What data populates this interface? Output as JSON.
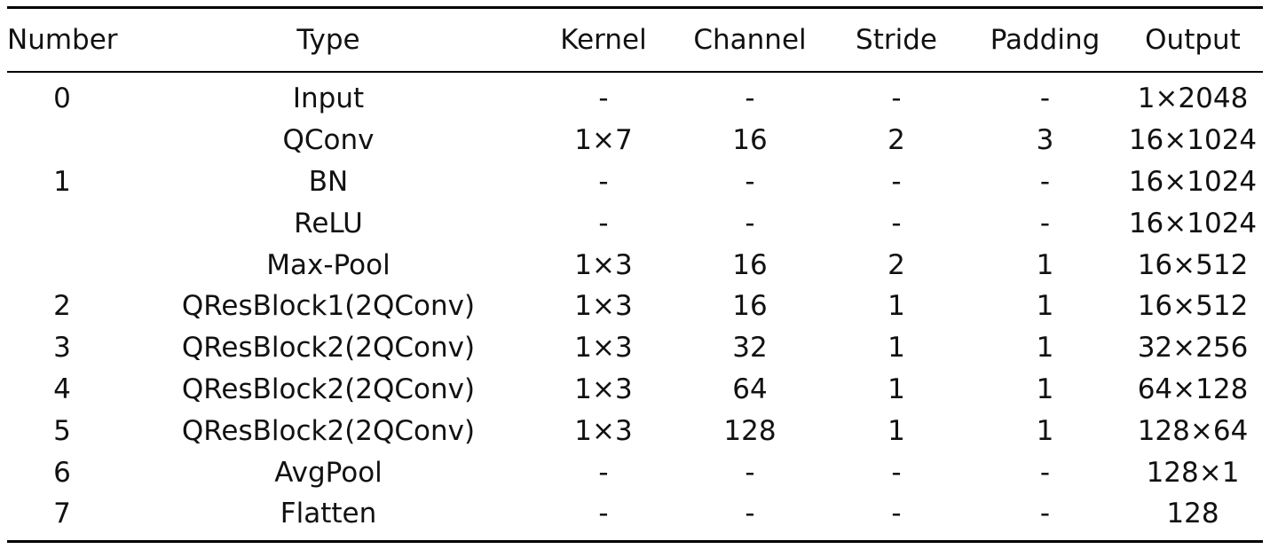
{
  "table": {
    "headers": [
      "Number",
      "Type",
      "Kernel",
      "Channel",
      "Stride",
      "Padding",
      "Output"
    ],
    "rows": [
      {
        "number": "0",
        "type": "Input",
        "kernel": "-",
        "channel": "-",
        "stride": "-",
        "padding": "-",
        "output": "1×2048"
      },
      {
        "number": "",
        "type": "QConv",
        "kernel": "1×7",
        "channel": "16",
        "stride": "2",
        "padding": "3",
        "output": "16×1024"
      },
      {
        "number": "1",
        "type": "BN",
        "kernel": "-",
        "channel": "-",
        "stride": "-",
        "padding": "-",
        "output": "16×1024"
      },
      {
        "number": "",
        "type": "ReLU",
        "kernel": "-",
        "channel": "-",
        "stride": "-",
        "padding": "-",
        "output": "16×1024"
      },
      {
        "number": "",
        "type": "Max-Pool",
        "kernel": "1×3",
        "channel": "16",
        "stride": "2",
        "padding": "1",
        "output": "16×512"
      },
      {
        "number": "2",
        "type": "QResBlock1(2QConv)",
        "kernel": "1×3",
        "channel": "16",
        "stride": "1",
        "padding": "1",
        "output": "16×512"
      },
      {
        "number": "3",
        "type": "QResBlock2(2QConv)",
        "kernel": "1×3",
        "channel": "32",
        "stride": "1",
        "padding": "1",
        "output": "32×256"
      },
      {
        "number": "4",
        "type": "QResBlock2(2QConv)",
        "kernel": "1×3",
        "channel": "64",
        "stride": "1",
        "padding": "1",
        "output": "64×128"
      },
      {
        "number": "5",
        "type": "QResBlock2(2QConv)",
        "kernel": "1×3",
        "channel": "128",
        "stride": "1",
        "padding": "1",
        "output": "128×64"
      },
      {
        "number": "6",
        "type": "AvgPool",
        "kernel": "-",
        "channel": "-",
        "stride": "-",
        "padding": "-",
        "output": "128×1"
      },
      {
        "number": "7",
        "type": "Flatten",
        "kernel": "-",
        "channel": "-",
        "stride": "-",
        "padding": "-",
        "output": "128"
      }
    ]
  }
}
